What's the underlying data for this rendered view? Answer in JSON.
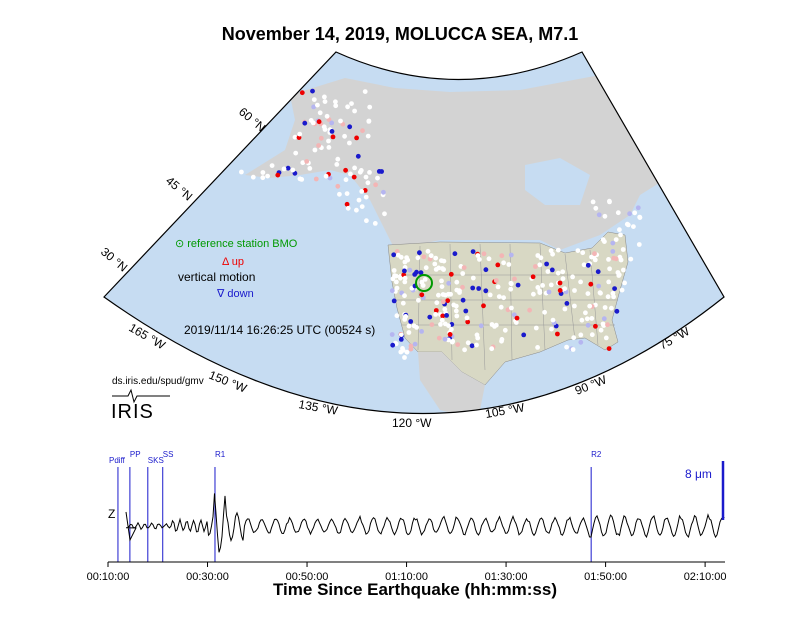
{
  "title": "November 14, 2019, MOLUCCA SEA, M7.1",
  "map": {
    "lat_labels": [
      "60 °N",
      "45 °N",
      "30 °N"
    ],
    "lon_labels": [
      "165 °W",
      "150 °W",
      "135 °W",
      "120 °W",
      "105 °W",
      "90 °W",
      "75 °W"
    ],
    "legend": {
      "reference": "⊙ reference station BMO",
      "up": "Δ up",
      "vertical": "vertical motion",
      "down": "∇ down"
    },
    "timestamp": "2019/11/14 16:26:25 UTC (00524 s)",
    "source_url": "ds.iris.edu/spud/gmv",
    "logo_text": "IRIS",
    "colors": {
      "ocean": "#c6dcf2",
      "land_us": "#d8d8c4",
      "land_other": "#d3d3d3",
      "reference": "#009900",
      "up": "#ee0000",
      "down": "#1a1acc"
    }
  },
  "seismogram": {
    "channel": "Z",
    "scale_label": "8 μm",
    "phases": [
      {
        "name": "Pdiff",
        "t": 0.2
      },
      {
        "name": "PP",
        "t": 0.24
      },
      {
        "name": "SKS",
        "t": 0.3
      },
      {
        "name": "SS",
        "t": 0.35
      },
      {
        "name": "R1",
        "t": 0.525
      },
      {
        "name": "R2",
        "t": 1.785
      }
    ],
    "x_ticks": [
      "00:10:00",
      "00:30:00",
      "00:50:00",
      "01:10:00",
      "01:30:00",
      "01:50:00",
      "02:10:00"
    ],
    "x_label": "Time Since Earthquake (hh:mm:ss)"
  }
}
